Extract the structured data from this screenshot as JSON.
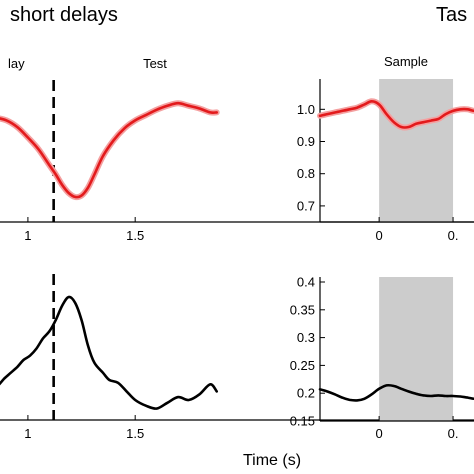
{
  "figure": {
    "title_left": "short delays",
    "title_right": "Tas",
    "xlabel": "Time (s)"
  },
  "chart_data": [
    {
      "id": "top-left",
      "type": "line",
      "period_labels": [
        "lay",
        "Test"
      ],
      "xticks": [
        "1",
        "1.5"
      ],
      "vline_x": 1.12,
      "xlim": [
        0.8,
        1.9
      ],
      "ylim": [
        0,
        1
      ],
      "series": [
        {
          "color": "#e31a1c",
          "x": [
            0.8,
            0.85,
            0.9,
            0.95,
            1.0,
            1.05,
            1.1,
            1.13,
            1.16,
            1.19,
            1.22,
            1.25,
            1.28,
            1.31,
            1.35,
            1.4,
            1.45,
            1.5,
            1.55,
            1.6,
            1.65,
            1.7,
            1.75,
            1.8,
            1.85,
            1.88
          ],
          "y": [
            0.8,
            0.79,
            0.77,
            0.72,
            0.64,
            0.55,
            0.43,
            0.36,
            0.28,
            0.22,
            0.19,
            0.2,
            0.26,
            0.36,
            0.5,
            0.62,
            0.71,
            0.77,
            0.81,
            0.85,
            0.88,
            0.9,
            0.88,
            0.86,
            0.83,
            0.83
          ]
        }
      ]
    },
    {
      "id": "top-right",
      "type": "line",
      "period_label": "Sample",
      "shaded_x": [
        0,
        0.5
      ],
      "xticks": [
        "0",
        "0."
      ],
      "xlim": [
        -0.4,
        0.75
      ],
      "yticks": [
        "1.0",
        "0.9",
        "0.8",
        "0.7"
      ],
      "ylim": [
        0.65,
        1.06
      ],
      "series": [
        {
          "color": "#e31a1c",
          "x": [
            -0.4,
            -0.35,
            -0.3,
            -0.25,
            -0.2,
            -0.15,
            -0.1,
            -0.05,
            0.0,
            0.05,
            0.1,
            0.15,
            0.2,
            0.25,
            0.3,
            0.35,
            0.4,
            0.45,
            0.5,
            0.55,
            0.6,
            0.65,
            0.7,
            0.73
          ],
          "y": [
            0.98,
            0.985,
            0.99,
            0.995,
            1.0,
            1.005,
            1.015,
            1.025,
            1.015,
            0.985,
            0.96,
            0.945,
            0.945,
            0.955,
            0.96,
            0.965,
            0.97,
            0.985,
            0.995,
            1.0,
            1.0,
            0.995,
            1.005,
            1.0
          ]
        }
      ]
    },
    {
      "id": "bottom-left",
      "type": "line",
      "xticks": [
        "1",
        "1.5"
      ],
      "vline_x": 1.12,
      "xlim": [
        0.8,
        1.9
      ],
      "ylim": [
        0,
        1
      ],
      "series": [
        {
          "color": "#000000",
          "x": [
            0.8,
            0.83,
            0.86,
            0.89,
            0.92,
            0.95,
            0.98,
            1.01,
            1.04,
            1.07,
            1.1,
            1.13,
            1.16,
            1.19,
            1.22,
            1.25,
            1.28,
            1.31,
            1.35,
            1.38,
            1.42,
            1.46,
            1.5,
            1.55,
            1.6,
            1.65,
            1.7,
            1.75,
            1.8,
            1.85,
            1.88
          ],
          "y": [
            0.2,
            0.21,
            0.24,
            0.29,
            0.33,
            0.37,
            0.42,
            0.45,
            0.5,
            0.57,
            0.62,
            0.7,
            0.8,
            0.86,
            0.82,
            0.7,
            0.52,
            0.4,
            0.33,
            0.28,
            0.26,
            0.2,
            0.14,
            0.1,
            0.08,
            0.12,
            0.16,
            0.14,
            0.18,
            0.25,
            0.2
          ]
        }
      ]
    },
    {
      "id": "bottom-right",
      "type": "line",
      "shaded_x": [
        0,
        0.5
      ],
      "xticks": [
        "0",
        "0."
      ],
      "xlim": [
        -0.4,
        0.75
      ],
      "yticks": [
        "0.4",
        "0.35",
        "0.3",
        "0.25",
        "0.2",
        "0.15"
      ],
      "ylim": [
        0.15,
        0.4
      ],
      "series": [
        {
          "color": "#000000",
          "x": [
            -0.4,
            -0.35,
            -0.3,
            -0.25,
            -0.2,
            -0.15,
            -0.1,
            -0.05,
            0.0,
            0.05,
            0.1,
            0.15,
            0.2,
            0.25,
            0.3,
            0.35,
            0.4,
            0.45,
            0.5,
            0.55,
            0.6,
            0.65,
            0.7,
            0.73
          ],
          "y": [
            0.207,
            0.203,
            0.198,
            0.192,
            0.188,
            0.187,
            0.19,
            0.198,
            0.208,
            0.214,
            0.213,
            0.208,
            0.203,
            0.199,
            0.196,
            0.195,
            0.196,
            0.195,
            0.195,
            0.194,
            0.192,
            0.19,
            0.193,
            0.195
          ]
        }
      ]
    }
  ]
}
